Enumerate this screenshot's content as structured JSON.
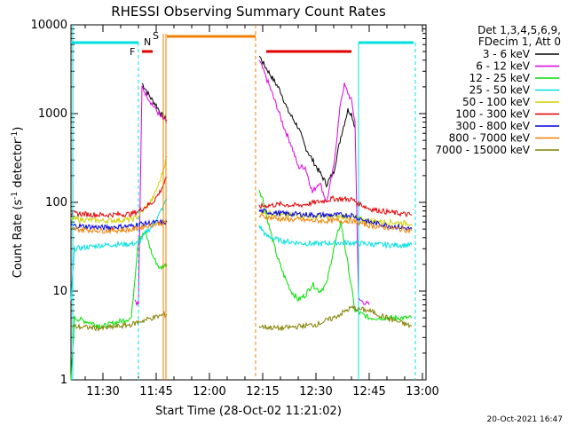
{
  "chart_data": {
    "type": "line",
    "title": "RHESSI Observing Summary Count Rates",
    "xlabel": "Start Time (28-Oct-02 11:21:02)",
    "ylabel": "Count Rate (s",
    "ylabel_sup": "-1",
    "ylabel_tail": " detector",
    "ylabel_close": ")",
    "y_scale": "log",
    "ylim": [
      1,
      10000
    ],
    "xlim": [
      "11:21",
      "13:01"
    ],
    "x_ticks": [
      "11:30",
      "11:45",
      "12:00",
      "12:15",
      "12:30",
      "12:45",
      "13:00"
    ],
    "y_ticks": [
      "1",
      "10",
      "100",
      "1000",
      "10000"
    ],
    "legend_position": "right",
    "legend_header": [
      "Det 1,3,4,5,6,9,",
      "FDecim 1, Att 0"
    ],
    "timestamp": "20-Oct-2021 16:47",
    "series": [
      {
        "name": "3 - 6 keV",
        "color": "#000000",
        "points": [
          [
            "11:41",
            2200
          ],
          [
            "11:42",
            1900
          ],
          [
            "11:43",
            1600
          ],
          [
            "11:44",
            1400
          ],
          [
            "11:45",
            1250
          ],
          [
            "11:46",
            1050
          ],
          [
            "11:47",
            900
          ],
          [
            "11:48",
            850
          ],
          [
            "12:14",
            4500
          ],
          [
            "12:15",
            3800
          ],
          [
            "12:17",
            2800
          ],
          [
            "12:20",
            1800
          ],
          [
            "12:22",
            1100
          ],
          [
            "12:25",
            700
          ],
          [
            "12:27",
            420
          ],
          [
            "12:29",
            300
          ],
          [
            "12:31",
            220
          ],
          [
            "12:33",
            160
          ],
          [
            "12:35",
            220
          ],
          [
            "12:37",
            550
          ],
          [
            "12:39",
            1100
          ],
          [
            "12:40",
            1000
          ],
          [
            "12:41",
            700
          ]
        ]
      },
      {
        "name": "6 - 12 keV",
        "color": "#e000e0",
        "points": [
          [
            "11:39",
            8
          ],
          [
            "11:40",
            7
          ],
          [
            "11:41",
            2000
          ],
          [
            "11:42",
            1700
          ],
          [
            "11:43",
            1450
          ],
          [
            "11:44",
            1250
          ],
          [
            "11:45",
            1100
          ],
          [
            "11:46",
            950
          ],
          [
            "11:47",
            850
          ],
          [
            "11:48",
            800
          ],
          [
            "12:14",
            4000
          ],
          [
            "12:15",
            3200
          ],
          [
            "12:17",
            2000
          ],
          [
            "12:19",
            1200
          ],
          [
            "12:21",
            700
          ],
          [
            "12:23",
            450
          ],
          [
            "12:25",
            250
          ],
          [
            "12:27",
            250
          ],
          [
            "12:29",
            130
          ],
          [
            "12:31",
            170
          ],
          [
            "12:33",
            100
          ],
          [
            "12:35",
            250
          ],
          [
            "12:37",
            1400
          ],
          [
            "12:38",
            2100
          ],
          [
            "12:40",
            1400
          ],
          [
            "12:41",
            800
          ],
          [
            "12:42",
            8
          ],
          [
            "12:45",
            7
          ]
        ]
      },
      {
        "name": "12 - 25 keV",
        "color": "#00e000",
        "points": [
          [
            "11:21",
            1
          ],
          [
            "11:22",
            5
          ],
          [
            "11:30",
            4
          ],
          [
            "11:38",
            5
          ],
          [
            "11:40",
            40
          ],
          [
            "11:42",
            45
          ],
          [
            "11:44",
            25
          ],
          [
            "11:46",
            18
          ],
          [
            "11:48",
            20
          ],
          [
            "12:14",
            140
          ],
          [
            "12:15",
            110
          ],
          [
            "12:17",
            50
          ],
          [
            "12:19",
            25
          ],
          [
            "12:21",
            15
          ],
          [
            "12:23",
            10
          ],
          [
            "12:25",
            8
          ],
          [
            "12:27",
            9
          ],
          [
            "12:29",
            12
          ],
          [
            "12:31",
            10
          ],
          [
            "12:33",
            12
          ],
          [
            "12:35",
            30
          ],
          [
            "12:37",
            60
          ],
          [
            "12:39",
            20
          ],
          [
            "12:41",
            6
          ],
          [
            "12:45",
            5
          ],
          [
            "12:50",
            5
          ],
          [
            "12:57",
            5
          ]
        ]
      },
      {
        "name": "25 - 50 keV",
        "color": "#00e0e0",
        "points": [
          [
            "11:21",
            8
          ],
          [
            "11:22",
            30
          ],
          [
            "11:30",
            33
          ],
          [
            "11:38",
            34
          ],
          [
            "11:40",
            35
          ],
          [
            "11:42",
            45
          ],
          [
            "11:44",
            55
          ],
          [
            "11:46",
            75
          ],
          [
            "11:48",
            110
          ],
          [
            "12:14",
            55
          ],
          [
            "12:16",
            42
          ],
          [
            "12:20",
            37
          ],
          [
            "12:25",
            35
          ],
          [
            "12:30",
            34
          ],
          [
            "12:35",
            35
          ],
          [
            "12:40",
            35
          ],
          [
            "12:45",
            34
          ],
          [
            "12:50",
            33
          ],
          [
            "12:57",
            33
          ]
        ]
      },
      {
        "name": "50 - 100 keV",
        "color": "#d0d000",
        "points": [
          [
            "11:21",
            65
          ],
          [
            "11:30",
            62
          ],
          [
            "11:38",
            64
          ],
          [
            "11:40",
            70
          ],
          [
            "11:44",
            110
          ],
          [
            "11:46",
            170
          ],
          [
            "11:48",
            330
          ],
          [
            "12:14",
            80
          ],
          [
            "12:20",
            72
          ],
          [
            "12:30",
            70
          ],
          [
            "12:40",
            68
          ],
          [
            "12:45",
            62
          ],
          [
            "12:50",
            60
          ],
          [
            "12:57",
            58
          ]
        ]
      },
      {
        "name": "100 - 300 keV",
        "color": "#e00000",
        "points": [
          [
            "11:21",
            75
          ],
          [
            "11:30",
            72
          ],
          [
            "11:38",
            74
          ],
          [
            "11:40",
            80
          ],
          [
            "11:44",
            100
          ],
          [
            "11:46",
            130
          ],
          [
            "11:48",
            190
          ],
          [
            "12:14",
            90
          ],
          [
            "12:20",
            95
          ],
          [
            "12:25",
            92
          ],
          [
            "12:30",
            100
          ],
          [
            "12:35",
            110
          ],
          [
            "12:40",
            108
          ],
          [
            "12:45",
            85
          ],
          [
            "12:50",
            78
          ],
          [
            "12:57",
            72
          ]
        ]
      },
      {
        "name": "300 - 800 keV",
        "color": "#0000e0",
        "points": [
          [
            "11:21",
            55
          ],
          [
            "11:30",
            52
          ],
          [
            "11:38",
            54
          ],
          [
            "11:40",
            57
          ],
          [
            "11:44",
            59
          ],
          [
            "11:48",
            60
          ],
          [
            "12:14",
            80
          ],
          [
            "12:20",
            75
          ],
          [
            "12:30",
            72
          ],
          [
            "12:40",
            72
          ],
          [
            "12:45",
            60
          ],
          [
            "12:50",
            55
          ],
          [
            "12:57",
            50
          ]
        ]
      },
      {
        "name": "800 - 7000 keV",
        "color": "#f08000",
        "points": [
          [
            "11:21",
            50
          ],
          [
            "11:30",
            48
          ],
          [
            "11:38",
            49
          ],
          [
            "11:40",
            52
          ],
          [
            "11:44",
            56
          ],
          [
            "11:48",
            60
          ],
          [
            "12:14",
            70
          ],
          [
            "12:20",
            65
          ],
          [
            "12:30",
            62
          ],
          [
            "12:40",
            62
          ],
          [
            "12:45",
            55
          ],
          [
            "12:50",
            52
          ],
          [
            "12:57",
            48
          ]
        ]
      },
      {
        "name": "7000 - 15000 keV",
        "color": "#808000",
        "points": [
          [
            "11:21",
            4
          ],
          [
            "11:30",
            3.8
          ],
          [
            "11:38",
            4.2
          ],
          [
            "11:40",
            4.5
          ],
          [
            "11:44",
            5
          ],
          [
            "11:48",
            5.5
          ],
          [
            "12:14",
            4
          ],
          [
            "12:20",
            3.8
          ],
          [
            "12:25",
            4
          ],
          [
            "12:30",
            4.2
          ],
          [
            "12:35",
            5
          ],
          [
            "12:40",
            6.5
          ],
          [
            "12:45",
            6
          ],
          [
            "12:50",
            5
          ],
          [
            "12:57",
            4
          ]
        ]
      }
    ],
    "annotations": [
      {
        "label": "N",
        "color": "#00e0e0",
        "x": "11:40"
      },
      {
        "label": "F",
        "color": "#e00000",
        "x": "11:40"
      },
      {
        "label": "S",
        "color": "#f08000",
        "x": "11:47"
      }
    ]
  }
}
